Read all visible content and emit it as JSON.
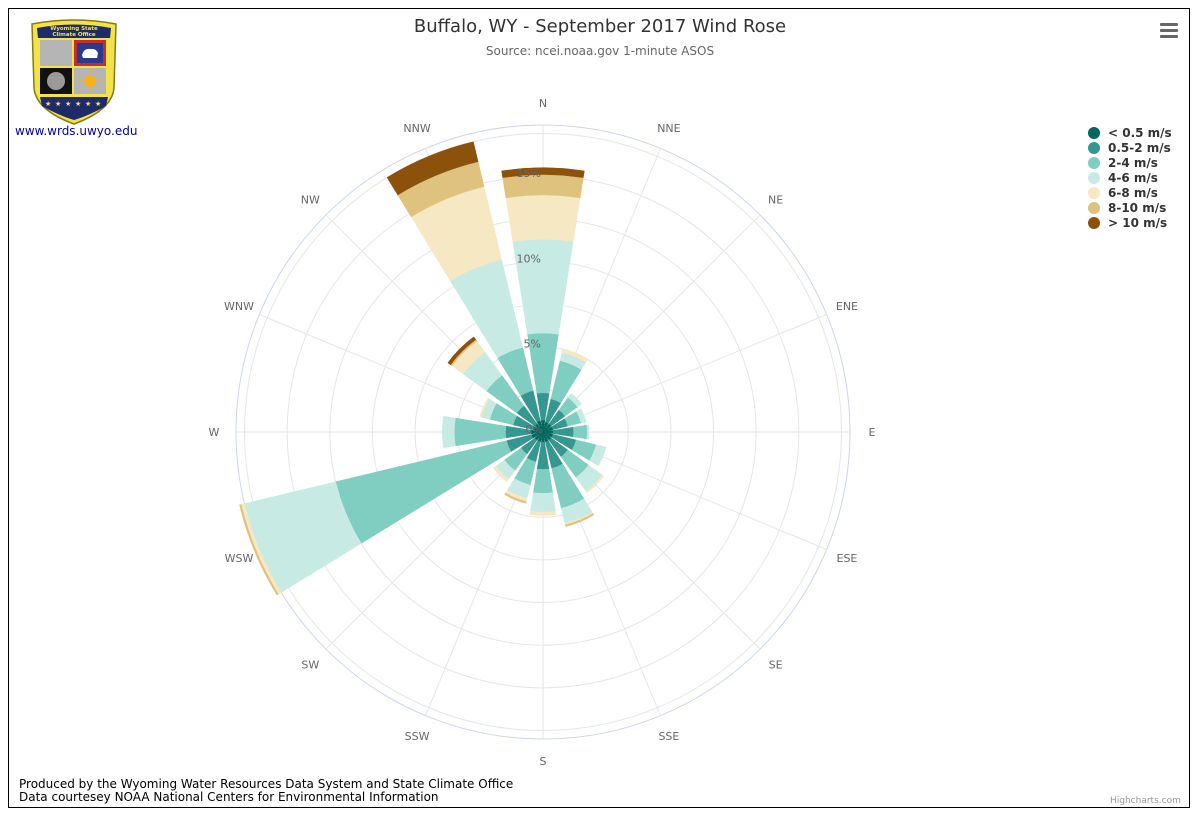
{
  "header": {
    "title": "Buffalo, WY - September 2017 Wind Rose",
    "subtitle": "Source: ncei.noaa.gov 1-minute ASOS"
  },
  "logo": {
    "line1": "Wyoming State",
    "line2": "Climate Office",
    "site": "www.wrds.uwyo.edu"
  },
  "footer": {
    "line1": "Produced by the Wyoming Water Resources Data System and State Climate Office",
    "line2": "Data courtesey NOAA National Centers for Environmental Information",
    "credits": "Highcharts.com"
  },
  "menu_icon": "hamburger-menu-icon",
  "chart_data": {
    "type": "wind rose (stacked polar column)",
    "title": "Buffalo, WY - September 2017 Wind Rose",
    "subtitle": "Source: ncei.noaa.gov 1-minute ASOS",
    "directions": [
      "N",
      "NNE",
      "NE",
      "ENE",
      "E",
      "ESE",
      "SE",
      "SSE",
      "S",
      "SSW",
      "SW",
      "WSW",
      "W",
      "WNW",
      "NW",
      "NNW"
    ],
    "radial_ticks": [
      "0%",
      "5%",
      "10%",
      "15%"
    ],
    "radial_tick_values": [
      0,
      5,
      10,
      15
    ],
    "radial_max": 18,
    "grid": true,
    "legend_position": "top-right",
    "series": [
      {
        "name": "< 0.5 m/s",
        "color": "#01665e",
        "values": [
          0.7,
          0.6,
          0.6,
          0.6,
          0.6,
          0.6,
          0.6,
          0.6,
          0.6,
          0.6,
          0.6,
          0.7,
          0.7,
          0.6,
          0.6,
          0.7
        ]
      },
      {
        "name": "0.5-2 m/s",
        "color": "#35978f",
        "values": [
          1.6,
          1.4,
          1.0,
          0.9,
          1.2,
          1.4,
          1.2,
          1.6,
          1.6,
          1.2,
          1.0,
          1.5,
          1.5,
          1.2,
          1.3,
          1.8
        ]
      },
      {
        "name": "2-4 m/s",
        "color": "#80cdc1",
        "values": [
          3.5,
          2.3,
          0.9,
          0.8,
          0.8,
          1.2,
          1.5,
          2.4,
          1.4,
          1.4,
          1.2,
          10.3,
          3.0,
          1.4,
          2.2,
          2.6
        ]
      },
      {
        "name": "4-6 m/s",
        "color": "#c7eae5",
        "values": [
          5.5,
          0.5,
          0.3,
          0.3,
          0.1,
          0.6,
          1.0,
          0.9,
          1.1,
          0.8,
          0.6,
          5.5,
          0.7,
          0.5,
          1.7,
          5.3
        ]
      },
      {
        "name": "6-8 m/s",
        "color": "#f6e8c3",
        "values": [
          2.6,
          0.2,
          0.0,
          0.0,
          0.0,
          0.0,
          0.1,
          0.1,
          0.2,
          0.2,
          0.2,
          0.2,
          0.0,
          0.1,
          0.8,
          4.4
        ]
      },
      {
        "name": "8-10 m/s",
        "color": "#dfc27d",
        "values": [
          1.2,
          0.0,
          0.0,
          0.0,
          0.0,
          0.0,
          0.0,
          0.1,
          0.0,
          0.1,
          0.0,
          0.1,
          0.0,
          0.0,
          0.1,
          1.5
        ]
      },
      {
        "name": "> 10 m/s",
        "color": "#8c510a",
        "values": [
          0.4,
          0.0,
          0.0,
          0.0,
          0.0,
          0.0,
          0.0,
          0.0,
          0.0,
          0.0,
          0.0,
          0.0,
          0.0,
          0.0,
          0.2,
          1.2
        ]
      }
    ]
  }
}
